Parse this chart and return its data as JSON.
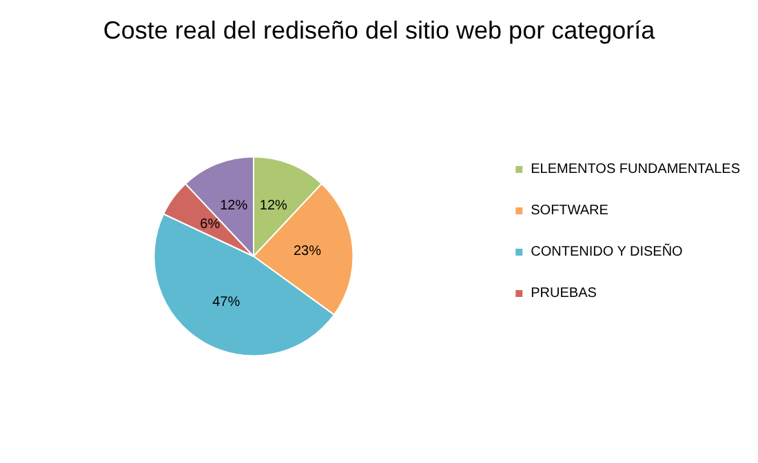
{
  "chart_data": {
    "type": "pie",
    "title": "Coste real del rediseño del sitio web por categoría",
    "categories": [
      "ELEMENTOS FUNDAMENTALES",
      "SOFTWARE",
      "CONTENIDO Y DISEÑO",
      "PRUEBAS",
      null
    ],
    "values": [
      12,
      23,
      47,
      6,
      12
    ],
    "colors": [
      "#adc870",
      "#f9a75e",
      "#5ebad1",
      "#cf6760",
      "#9580b5"
    ],
    "value_labels": [
      "12%",
      "23%",
      "47%",
      "6%",
      "12%"
    ],
    "legend": "right"
  }
}
